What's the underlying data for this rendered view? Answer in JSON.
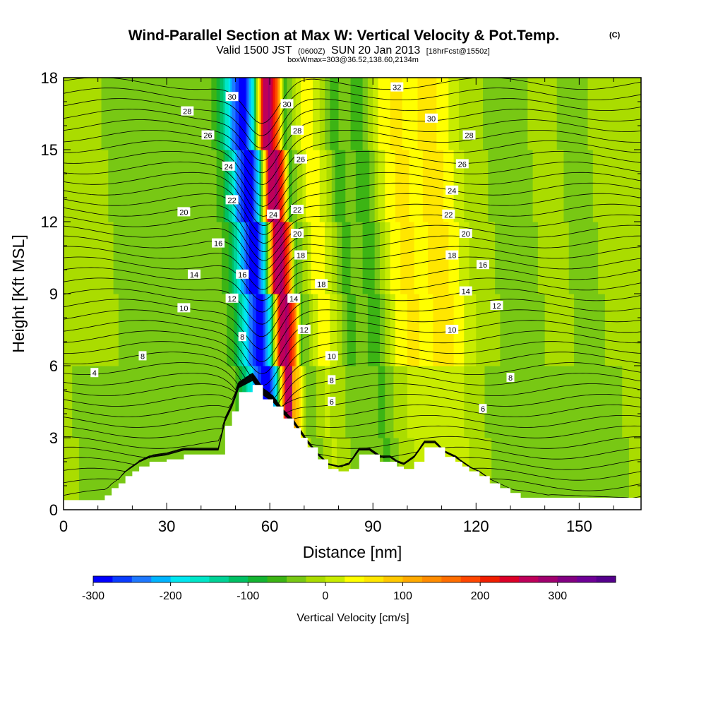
{
  "header": {
    "title": "Wind-Parallel Section at Max W: Vertical Velocity & Pot.Temp.",
    "title_unit": "(C)",
    "subtitle_pre": "Valid 1500 JST",
    "subtitle_z": "(0600Z)",
    "subtitle_post": "SUN 20 Jan 2013",
    "subtitle_fcst": "[18hrFcst@1550z]",
    "subline": "boxWmax=303@36.52,138.60,2134m"
  },
  "chart_data": {
    "type": "heatmap",
    "title": "Wind-Parallel Section at Max W: Vertical Velocity & Pot.Temp.",
    "xlabel": "Distance [nm]",
    "ylabel": "Height [Kft MSL]",
    "xlim": [
      0,
      168
    ],
    "ylim": [
      0,
      18
    ],
    "x_ticks": [
      0,
      30,
      60,
      90,
      120,
      150
    ],
    "x_tick_labels": [
      "0",
      "30",
      "60",
      "90",
      "120",
      "150"
    ],
    "y_ticks": [
      0,
      3,
      6,
      9,
      12,
      15,
      18
    ],
    "y_tick_labels": [
      "0",
      "3",
      "6",
      "9",
      "12",
      "15",
      "18"
    ],
    "colorbar": {
      "label": "Vertical Velocity [cm/s]",
      "min": -300,
      "max": 375,
      "step": 25,
      "tick_values": [
        -300,
        -200,
        -100,
        0,
        100,
        200,
        300
      ],
      "tick_labels": [
        "-300",
        "-200",
        "-100",
        "0",
        "100",
        "200",
        "300"
      ],
      "colors": [
        "#0000ff",
        "#0a3cff",
        "#1e78ff",
        "#00b4ff",
        "#00e6f0",
        "#00e6c8",
        "#00d296",
        "#00c064",
        "#14b432",
        "#3cb414",
        "#78c814",
        "#aadc00",
        "#c8ec00",
        "#ffff00",
        "#ffe600",
        "#ffc800",
        "#ffaa00",
        "#ff8c00",
        "#ff6e00",
        "#ff4600",
        "#f01e00",
        "#dc0028",
        "#be005a",
        "#a0006e",
        "#820082",
        "#6e0096",
        "#55008c"
      ]
    },
    "vertical_velocity_profile": {
      "x": [
        0,
        10,
        20,
        30,
        38,
        44,
        48,
        51,
        53,
        55,
        57,
        59,
        61,
        62,
        64,
        66,
        68,
        70,
        74,
        78,
        82,
        86,
        90,
        95,
        100,
        105,
        110,
        115,
        120,
        125,
        130,
        135,
        140,
        145,
        150,
        155,
        160,
        168
      ],
      "w": [
        -10,
        -20,
        -30,
        -40,
        -40,
        -30,
        -60,
        -150,
        -230,
        -280,
        -280,
        -180,
        100,
        260,
        280,
        180,
        -60,
        -30,
        50,
        10,
        -60,
        -40,
        -70,
        20,
        60,
        40,
        70,
        30,
        -10,
        -20,
        -50,
        -40,
        -20,
        -20,
        -30,
        -30,
        -10,
        -10
      ]
    },
    "potential_temperature_contours": {
      "units": "C",
      "interval": 1,
      "labels": [
        {
          "text": "32",
          "x": 97,
          "y": 17.6
        },
        {
          "text": "30",
          "x": 49,
          "y": 17.2
        },
        {
          "text": "30",
          "x": 65,
          "y": 16.9
        },
        {
          "text": "30",
          "x": 107,
          "y": 16.3
        },
        {
          "text": "28",
          "x": 36,
          "y": 16.6
        },
        {
          "text": "28",
          "x": 68,
          "y": 15.8
        },
        {
          "text": "28",
          "x": 118,
          "y": 15.6
        },
        {
          "text": "26",
          "x": 42,
          "y": 15.6
        },
        {
          "text": "26",
          "x": 69,
          "y": 14.6
        },
        {
          "text": "26",
          "x": 116,
          "y": 14.4
        },
        {
          "text": "24",
          "x": 48,
          "y": 14.3
        },
        {
          "text": "24",
          "x": 61,
          "y": 12.3
        },
        {
          "text": "24",
          "x": 113,
          "y": 13.3
        },
        {
          "text": "22",
          "x": 49,
          "y": 12.9
        },
        {
          "text": "22",
          "x": 68,
          "y": 12.5
        },
        {
          "text": "22",
          "x": 112,
          "y": 12.3
        },
        {
          "text": "20",
          "x": 35,
          "y": 12.4
        },
        {
          "text": "20",
          "x": 68,
          "y": 11.5
        },
        {
          "text": "20",
          "x": 117,
          "y": 11.5
        },
        {
          "text": "18",
          "x": 69,
          "y": 10.6
        },
        {
          "text": "18",
          "x": 75,
          "y": 9.4
        },
        {
          "text": "18",
          "x": 113,
          "y": 10.6
        },
        {
          "text": "16",
          "x": 45,
          "y": 11.1
        },
        {
          "text": "16",
          "x": 52,
          "y": 9.8
        },
        {
          "text": "16",
          "x": 122,
          "y": 10.2
        },
        {
          "text": "14",
          "x": 38,
          "y": 9.8
        },
        {
          "text": "14",
          "x": 67,
          "y": 8.8
        },
        {
          "text": "14",
          "x": 117,
          "y": 9.1
        },
        {
          "text": "12",
          "x": 49,
          "y": 8.8
        },
        {
          "text": "12",
          "x": 70,
          "y": 7.5
        },
        {
          "text": "12",
          "x": 126,
          "y": 8.5
        },
        {
          "text": "10",
          "x": 35,
          "y": 8.4
        },
        {
          "text": "10",
          "x": 78,
          "y": 6.4
        },
        {
          "text": "10",
          "x": 113,
          "y": 7.5
        },
        {
          "text": "8",
          "x": 52,
          "y": 7.2
        },
        {
          "text": "8",
          "x": 78,
          "y": 5.4
        },
        {
          "text": "8",
          "x": 130,
          "y": 5.5
        },
        {
          "text": "8",
          "x": 23,
          "y": 6.4
        },
        {
          "text": "6",
          "x": 78,
          "y": 4.5
        },
        {
          "text": "6",
          "x": 122,
          "y": 4.2
        },
        {
          "text": "4",
          "x": 9,
          "y": 5.7
        }
      ]
    },
    "terrain": {
      "x": [
        0,
        10,
        12,
        14,
        16,
        18,
        20,
        22,
        25,
        30,
        35,
        40,
        45,
        47,
        49,
        51,
        55,
        58,
        61,
        64,
        67,
        69,
        71,
        74,
        77,
        80,
        83,
        86,
        89,
        92,
        95,
        97,
        99,
        102,
        105,
        108,
        111,
        114,
        116,
        118,
        121,
        124,
        127,
        130,
        133,
        168
      ],
      "y": [
        0.4,
        0.4,
        0.6,
        0.9,
        1.1,
        1.4,
        1.6,
        1.8,
        2.0,
        2.1,
        2.3,
        2.3,
        2.3,
        3.5,
        4.1,
        4.9,
        5.2,
        4.6,
        4.3,
        3.8,
        3.4,
        3.0,
        2.6,
        2.1,
        1.7,
        1.6,
        1.7,
        2.3,
        2.3,
        2.0,
        2.0,
        1.8,
        1.7,
        2.0,
        2.6,
        2.6,
        2.2,
        2.0,
        1.8,
        1.6,
        1.4,
        1.1,
        0.9,
        0.7,
        0.5,
        0.3
      ]
    }
  }
}
